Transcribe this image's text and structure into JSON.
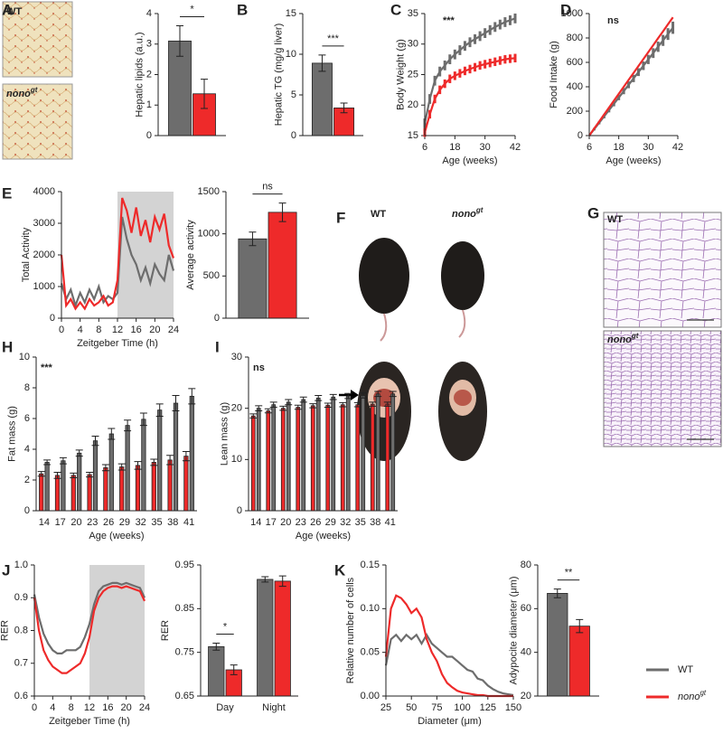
{
  "panel_labels": [
    "A",
    "B",
    "C",
    "D",
    "E",
    "F",
    "G",
    "H",
    "I",
    "J",
    "K"
  ],
  "images": [
    {
      "label": "WT"
    },
    {
      "label": "nono",
      "superscript": "gt"
    },
    {
      "label": "WT"
    },
    {
      "label": "nono",
      "superscript": "gt"
    },
    {
      "label": "WT"
    },
    {
      "label": "nono",
      "superscript": "gt"
    }
  ],
  "legend": [
    {
      "label": "WT",
      "color": "#6d6d6d"
    },
    {
      "label": "nono",
      "superscript": "gt",
      "color": "#ee2a2a"
    }
  ],
  "chart_data": [
    {
      "type": "bar",
      "ylabel": "Hepatic lipids (a.u.)",
      "ylim": [
        0,
        4
      ],
      "yticks": [
        0,
        1,
        2,
        3,
        4
      ],
      "series": [
        {
          "color": "#6d6d6d",
          "values": [
            3.1
          ],
          "errors": [
            0.5
          ]
        },
        {
          "color": "#ee2a2a",
          "values": [
            1.37
          ],
          "errors": [
            0.48
          ]
        }
      ],
      "annotation": "*"
    },
    {
      "type": "bar",
      "ylabel": "Hepatic TG (mg/g liver)",
      "ylim": [
        0,
        15
      ],
      "yticks": [
        0,
        5,
        10,
        15
      ],
      "series": [
        {
          "color": "#6d6d6d",
          "values": [
            8.9
          ],
          "errors": [
            1.0
          ]
        },
        {
          "color": "#ee2a2a",
          "values": [
            3.4
          ],
          "errors": [
            0.6
          ]
        }
      ],
      "annotation": "***"
    },
    {
      "type": "line",
      "ylabel": "Body Weight (g)",
      "xlabel": "Age (weeks)",
      "xlim": [
        6,
        42
      ],
      "xticks": [
        6,
        18,
        30,
        42
      ],
      "ylim": [
        15,
        35
      ],
      "yticks": [
        15,
        20,
        25,
        30,
        35
      ],
      "x": [
        6,
        8,
        10,
        12,
        14,
        16,
        18,
        20,
        22,
        24,
        26,
        28,
        30,
        32,
        34,
        36,
        38,
        40,
        42
      ],
      "series": [
        {
          "color": "#6d6d6d",
          "values": [
            17,
            21,
            24,
            25.5,
            26.5,
            27.5,
            28.3,
            29,
            29.7,
            30.3,
            30.8,
            31.3,
            31.8,
            32.3,
            32.8,
            33.2,
            33.6,
            33.9,
            34.2
          ],
          "errors": [
            0.8,
            0.8,
            0.8,
            0.8,
            0.8,
            0.8,
            0.8,
            0.8,
            0.8,
            0.8,
            0.8,
            0.8,
            0.8,
            0.8,
            0.8,
            0.8,
            0.8,
            0.8,
            0.8
          ]
        },
        {
          "color": "#ee2a2a",
          "values": [
            15.5,
            18.5,
            21,
            22.5,
            23.5,
            24.3,
            24.8,
            25.2,
            25.6,
            25.9,
            26.2,
            26.5,
            26.7,
            26.9,
            27.1,
            27.3,
            27.5,
            27.6,
            27.7
          ],
          "errors": [
            0.7,
            0.7,
            0.7,
            0.7,
            0.7,
            0.7,
            0.7,
            0.7,
            0.7,
            0.7,
            0.7,
            0.7,
            0.7,
            0.7,
            0.7,
            0.7,
            0.7,
            0.7,
            0.7
          ]
        }
      ],
      "annotation": "***"
    },
    {
      "type": "line",
      "ylabel": "Food Intake (g)",
      "xlabel": "Age (weeks)",
      "xlim": [
        6,
        42
      ],
      "xticks": [
        6,
        18,
        30,
        42
      ],
      "ylim": [
        0,
        1000
      ],
      "yticks": [
        0,
        200,
        400,
        600,
        800,
        1000
      ],
      "x": [
        6,
        8,
        10,
        12,
        14,
        16,
        18,
        20,
        22,
        24,
        26,
        28,
        30,
        32,
        34,
        36,
        38,
        40
      ],
      "series": [
        {
          "color": "#6d6d6d",
          "values": [
            0,
            52,
            104,
            156,
            208,
            260,
            312,
            364,
            416,
            468,
            520,
            572,
            624,
            676,
            728,
            780,
            832,
            884
          ],
          "errors": [
            5,
            10,
            12,
            15,
            18,
            20,
            22,
            25,
            28,
            30,
            32,
            35,
            38,
            40,
            42,
            45,
            48,
            50
          ]
        },
        {
          "color": "#ee2a2a",
          "values": [
            0,
            57,
            114,
            171,
            228,
            285,
            342,
            399,
            456,
            513,
            570,
            627,
            684,
            741,
            798,
            855,
            912,
            969
          ]
        }
      ],
      "annotation": "ns"
    },
    {
      "type": "line",
      "ylabel": "Total Activity",
      "xlabel": "Zeitgeber Time (h)",
      "xlim": [
        0,
        24
      ],
      "xticks": [
        0,
        4,
        8,
        12,
        16,
        20,
        24
      ],
      "ylim": [
        0,
        4000
      ],
      "yticks": [
        0,
        1000,
        2000,
        3000,
        4000
      ],
      "shade": [
        12,
        24
      ],
      "x": [
        0,
        1,
        2,
        3,
        4,
        5,
        6,
        7,
        8,
        9,
        10,
        11,
        12,
        13,
        14,
        15,
        16,
        17,
        18,
        19,
        20,
        21,
        22,
        23,
        24
      ],
      "series": [
        {
          "color": "#6d6d6d",
          "values": [
            1100,
            600,
            900,
            400,
            800,
            500,
            900,
            600,
            1000,
            500,
            700,
            600,
            800,
            3200,
            2500,
            2000,
            1700,
            1200,
            1600,
            1100,
            1700,
            1400,
            1200,
            2000,
            1500
          ]
        },
        {
          "color": "#ee2a2a",
          "values": [
            2000,
            400,
            600,
            300,
            500,
            300,
            600,
            400,
            500,
            700,
            400,
            500,
            1200,
            3800,
            3400,
            2700,
            3500,
            2600,
            3100,
            2400,
            3200,
            2800,
            3300,
            2300,
            1900
          ]
        }
      ]
    },
    {
      "type": "bar",
      "ylabel": "Average activity",
      "ylim": [
        0,
        1500
      ],
      "yticks": [
        0,
        500,
        1000,
        1500
      ],
      "series": [
        {
          "color": "#6d6d6d",
          "values": [
            940
          ],
          "errors": [
            80
          ]
        },
        {
          "color": "#ee2a2a",
          "values": [
            1255
          ],
          "errors": [
            110
          ]
        }
      ],
      "annotation": "ns"
    },
    {
      "type": "bar",
      "ylabel": "Fat mass (g)",
      "xlabel": "Age (weeks)",
      "categories": [
        "14",
        "17",
        "20",
        "23",
        "26",
        "29",
        "32",
        "35",
        "38",
        "41"
      ],
      "ylim": [
        0,
        10
      ],
      "yticks": [
        0,
        2,
        4,
        6,
        8,
        10
      ],
      "series": [
        {
          "color": "#ee2a2a",
          "values": [
            2.4,
            2.3,
            2.3,
            2.35,
            2.8,
            2.85,
            2.95,
            3.15,
            3.3,
            3.55
          ],
          "errors": [
            0.15,
            0.2,
            0.15,
            0.15,
            0.2,
            0.2,
            0.25,
            0.2,
            0.3,
            0.3
          ]
        },
        {
          "color": "#6d6d6d",
          "values": [
            3.15,
            3.25,
            3.75,
            4.55,
            5.0,
            5.55,
            5.95,
            6.55,
            7.0,
            7.45
          ],
          "errors": [
            0.15,
            0.2,
            0.2,
            0.3,
            0.35,
            0.35,
            0.4,
            0.4,
            0.5,
            0.5
          ]
        }
      ],
      "annotation": "***"
    },
    {
      "type": "bar",
      "ylabel": "Lean mass (g)",
      "xlabel": "Age (weeks)",
      "categories": [
        "14",
        "17",
        "20",
        "23",
        "26",
        "29",
        "32",
        "35",
        "38",
        "41"
      ],
      "ylim": [
        0,
        30
      ],
      "yticks": [
        0,
        10,
        20,
        30
      ],
      "series": [
        {
          "color": "#ee2a2a",
          "values": [
            18.5,
            19.5,
            20,
            20.2,
            20.5,
            20.6,
            20.7,
            20.7,
            20.8,
            20.8
          ],
          "errors": [
            0.4,
            0.4,
            0.4,
            0.4,
            0.4,
            0.4,
            0.4,
            0.4,
            0.4,
            0.4
          ]
        },
        {
          "color": "#6d6d6d",
          "values": [
            20,
            20.7,
            21.2,
            21.7,
            22,
            22.2,
            22.4,
            22.5,
            22.8,
            22.8
          ],
          "errors": [
            0.5,
            0.5,
            0.5,
            0.5,
            0.5,
            0.5,
            0.5,
            0.5,
            0.5,
            0.5
          ]
        }
      ],
      "annotation": "ns"
    },
    {
      "type": "line",
      "ylabel": "RER",
      "xlabel": "Zeitgeber Time (h)",
      "xlim": [
        0,
        24
      ],
      "xticks": [
        0,
        4,
        8,
        12,
        16,
        20,
        24
      ],
      "ylim": [
        0.6,
        1
      ],
      "yticks": [
        0.6,
        0.7,
        0.8,
        0.9,
        {
          "value": 1,
          "label": "1.0"
        }
      ],
      "shade": [
        12,
        24
      ],
      "x": [
        0,
        1,
        2,
        3,
        4,
        5,
        6,
        7,
        8,
        9,
        10,
        11,
        12,
        13,
        14,
        15,
        16,
        17,
        18,
        19,
        20,
        21,
        22,
        23,
        24
      ],
      "series": [
        {
          "color": "#6d6d6d",
          "values": [
            0.91,
            0.84,
            0.79,
            0.76,
            0.74,
            0.73,
            0.73,
            0.74,
            0.74,
            0.74,
            0.75,
            0.78,
            0.82,
            0.88,
            0.92,
            0.935,
            0.94,
            0.945,
            0.945,
            0.94,
            0.945,
            0.94,
            0.935,
            0.93,
            0.9
          ]
        },
        {
          "color": "#ee2a2a",
          "values": [
            0.9,
            0.8,
            0.74,
            0.71,
            0.69,
            0.68,
            0.67,
            0.67,
            0.68,
            0.69,
            0.7,
            0.73,
            0.78,
            0.86,
            0.9,
            0.92,
            0.93,
            0.935,
            0.935,
            0.93,
            0.935,
            0.93,
            0.925,
            0.92,
            0.89
          ]
        }
      ]
    },
    {
      "type": "bar",
      "ylabel": "RER",
      "categories": [
        "Day",
        "Night"
      ],
      "ylim": [
        0.65,
        0.95
      ],
      "yticks": [
        0.65,
        0.75,
        0.85,
        0.95
      ],
      "series": [
        {
          "color": "#6d6d6d",
          "values": [
            0.763,
            0.917
          ],
          "errors": [
            0.008,
            0.006
          ]
        },
        {
          "color": "#ee2a2a",
          "values": [
            0.71,
            0.913
          ],
          "errors": [
            0.011,
            0.012
          ]
        }
      ],
      "annotation": "*"
    },
    {
      "type": "line",
      "ylabel": "Relative number of cells",
      "xlabel": "Diameter (μm)",
      "xlim": [
        25,
        150
      ],
      "xticks": [
        25,
        50,
        75,
        100,
        125,
        150
      ],
      "ylim": [
        0,
        0.15
      ],
      "yticks": [
        {
          "value": 0,
          "label": "0.00"
        },
        0.05,
        {
          "value": 0.1,
          "label": "0.10"
        },
        0.15
      ],
      "x": [
        25,
        30,
        35,
        40,
        45,
        50,
        55,
        60,
        65,
        70,
        75,
        80,
        85,
        90,
        95,
        100,
        105,
        110,
        115,
        120,
        125,
        130,
        135,
        140,
        145,
        150
      ],
      "series": [
        {
          "color": "#6d6d6d",
          "values": [
            0.035,
            0.065,
            0.07,
            0.063,
            0.07,
            0.065,
            0.07,
            0.06,
            0.07,
            0.06,
            0.055,
            0.05,
            0.045,
            0.045,
            0.04,
            0.035,
            0.03,
            0.028,
            0.02,
            0.018,
            0.012,
            0.008,
            0.005,
            0.003,
            0.002,
            0.001
          ]
        },
        {
          "color": "#ee2a2a",
          "values": [
            0.045,
            0.1,
            0.115,
            0.112,
            0.105,
            0.095,
            0.1,
            0.09,
            0.065,
            0.05,
            0.04,
            0.025,
            0.015,
            0.01,
            0.006,
            0.004,
            0.003,
            0.002,
            0.001,
            0.001,
            0,
            0,
            0,
            0,
            0,
            0
          ]
        }
      ]
    },
    {
      "type": "bar",
      "ylabel": "Adypocite diameter (μm)",
      "ylim": [
        20,
        80
      ],
      "yticks": [
        20,
        40,
        60,
        80
      ],
      "series": [
        {
          "color": "#6d6d6d",
          "values": [
            67
          ],
          "errors": [
            2
          ]
        },
        {
          "color": "#ee2a2a",
          "values": [
            52
          ],
          "errors": [
            3
          ]
        }
      ],
      "annotation": "**"
    }
  ]
}
